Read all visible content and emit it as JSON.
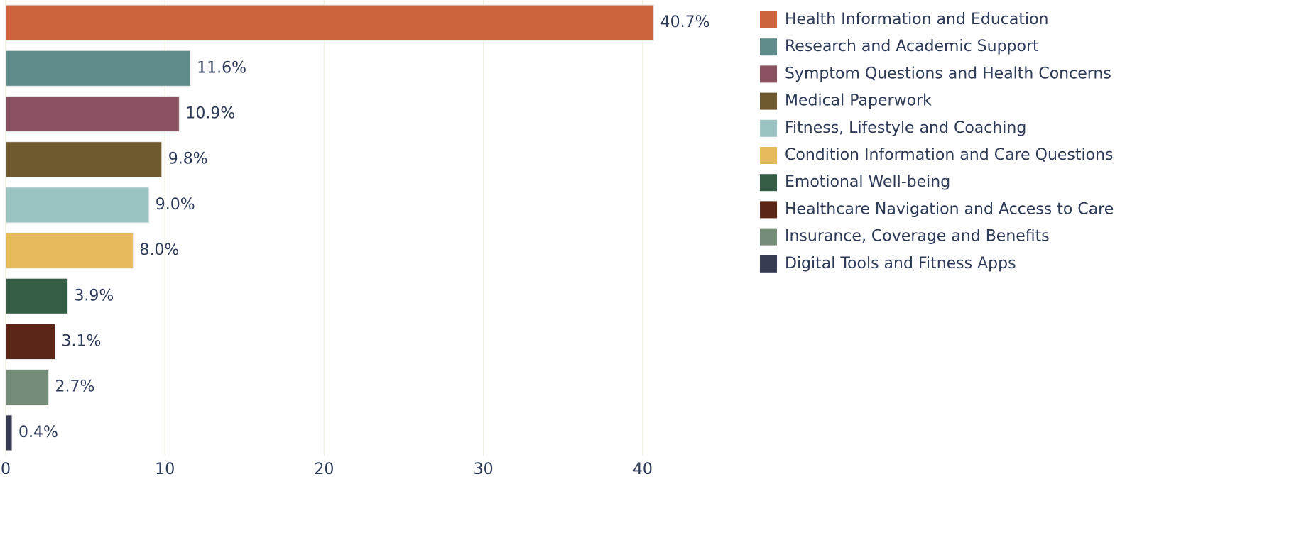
{
  "chart_data": {
    "type": "hbar",
    "categories": [
      "Health Information and Education",
      "Research and Academic Support",
      "Symptom Questions and Health Concerns",
      "Medical Paperwork",
      "Fitness, Lifestyle and Coaching",
      "Condition Information and Care Questions",
      "Emotional Well-being",
      "Healthcare Navigation and Access to Care",
      "Insurance, Coverage and Benefits",
      "Digital Tools and Fitness Apps"
    ],
    "values": [
      40.7,
      11.6,
      10.9,
      9.8,
      9.0,
      8.0,
      3.9,
      3.1,
      2.7,
      0.4
    ],
    "value_labels": [
      "40.7%",
      "11.6%",
      "10.9%",
      "9.8%",
      "9.0%",
      "8.0%",
      "3.9%",
      "3.1%",
      "2.7%",
      "0.4%"
    ],
    "colors": [
      "#cc653d",
      "#5f8b8a",
      "#8a5160",
      "#6f5a30",
      "#9bc3c1",
      "#e6b95c",
      "#355c45",
      "#5c2616",
      "#758c78",
      "#363a52"
    ],
    "xlim": [
      0,
      45
    ],
    "xticks": [
      0,
      10,
      20,
      30,
      40
    ],
    "grid": true,
    "legend": "right"
  }
}
